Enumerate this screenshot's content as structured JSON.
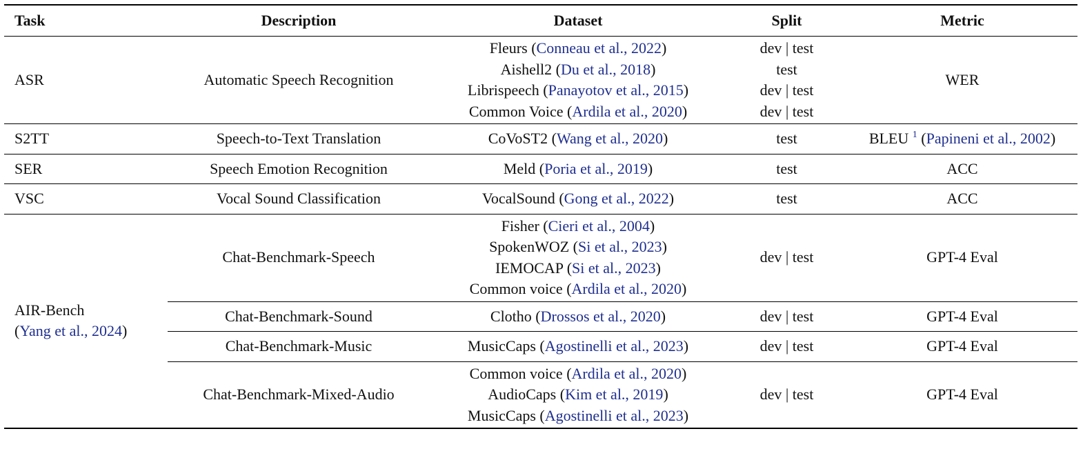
{
  "headers": [
    "Task",
    "Description",
    "Dataset",
    "Split",
    "Metric"
  ],
  "asr": {
    "task": "ASR",
    "description": "Automatic Speech Recognition",
    "datasets": [
      {
        "name": "Fleurs",
        "cite": "Conneau et al., 2022",
        "split": "dev | test"
      },
      {
        "name": "Aishell2",
        "cite": "Du et al., 2018",
        "split": "test"
      },
      {
        "name": "Librispeech",
        "cite": "Panayotov et al., 2015",
        "split": "dev | test"
      },
      {
        "name": "Common Voice",
        "cite": "Ardila et al., 2020",
        "split": "dev | test"
      }
    ],
    "metric": "WER"
  },
  "s2tt": {
    "task": "S2TT",
    "description": "Speech-to-Text Translation",
    "dataset": {
      "name": "CoVoST2",
      "cite": "Wang et al., 2020"
    },
    "split": "test",
    "metric": "BLEU",
    "metric_footnote": "1",
    "metric_cite": "Papineni et al., 2002"
  },
  "ser": {
    "task": "SER",
    "description": "Speech Emotion Recognition",
    "dataset": {
      "name": "Meld",
      "cite": "Poria et al., 2019"
    },
    "split": "test",
    "metric": "ACC"
  },
  "vsc": {
    "task": "VSC",
    "description": "Vocal Sound Classification",
    "dataset": {
      "name": "VocalSound",
      "cite": "Gong et al., 2022"
    },
    "split": "test",
    "metric": "ACC"
  },
  "air": {
    "task": "AIR-Bench",
    "task_cite": "Yang et al., 2024",
    "speech": {
      "description": "Chat-Benchmark-Speech",
      "datasets": [
        {
          "name": "Fisher",
          "cite": "Cieri et al., 2004"
        },
        {
          "name": "SpokenWOZ",
          "cite": "Si et al., 2023"
        },
        {
          "name": "IEMOCAP",
          "cite": "Si et al., 2023"
        },
        {
          "name": "Common voice",
          "cite": "Ardila et al., 2020"
        }
      ],
      "split": "dev | test",
      "metric": "GPT-4 Eval"
    },
    "sound": {
      "description": "Chat-Benchmark-Sound",
      "dataset": {
        "name": "Clotho",
        "cite": "Drossos et al., 2020"
      },
      "split": "dev | test",
      "metric": "GPT-4 Eval"
    },
    "music": {
      "description": "Chat-Benchmark-Music",
      "dataset": {
        "name": "MusicCaps",
        "cite": "Agostinelli et al., 2023"
      },
      "split": "dev | test",
      "metric": "GPT-4 Eval"
    },
    "mixed": {
      "description": "Chat-Benchmark-Mixed-Audio",
      "datasets": [
        {
          "name": "Common voice",
          "cite": "Ardila et al., 2020"
        },
        {
          "name": "AudioCaps",
          "cite": "Kim et al., 2019"
        },
        {
          "name": "MusicCaps",
          "cite": "Agostinelli et al., 2023"
        }
      ],
      "split": "dev | test",
      "metric": "GPT-4 Eval"
    }
  },
  "colors": {
    "citation": "#1f2f8f",
    "text": "#111111",
    "rule": "#000000"
  }
}
